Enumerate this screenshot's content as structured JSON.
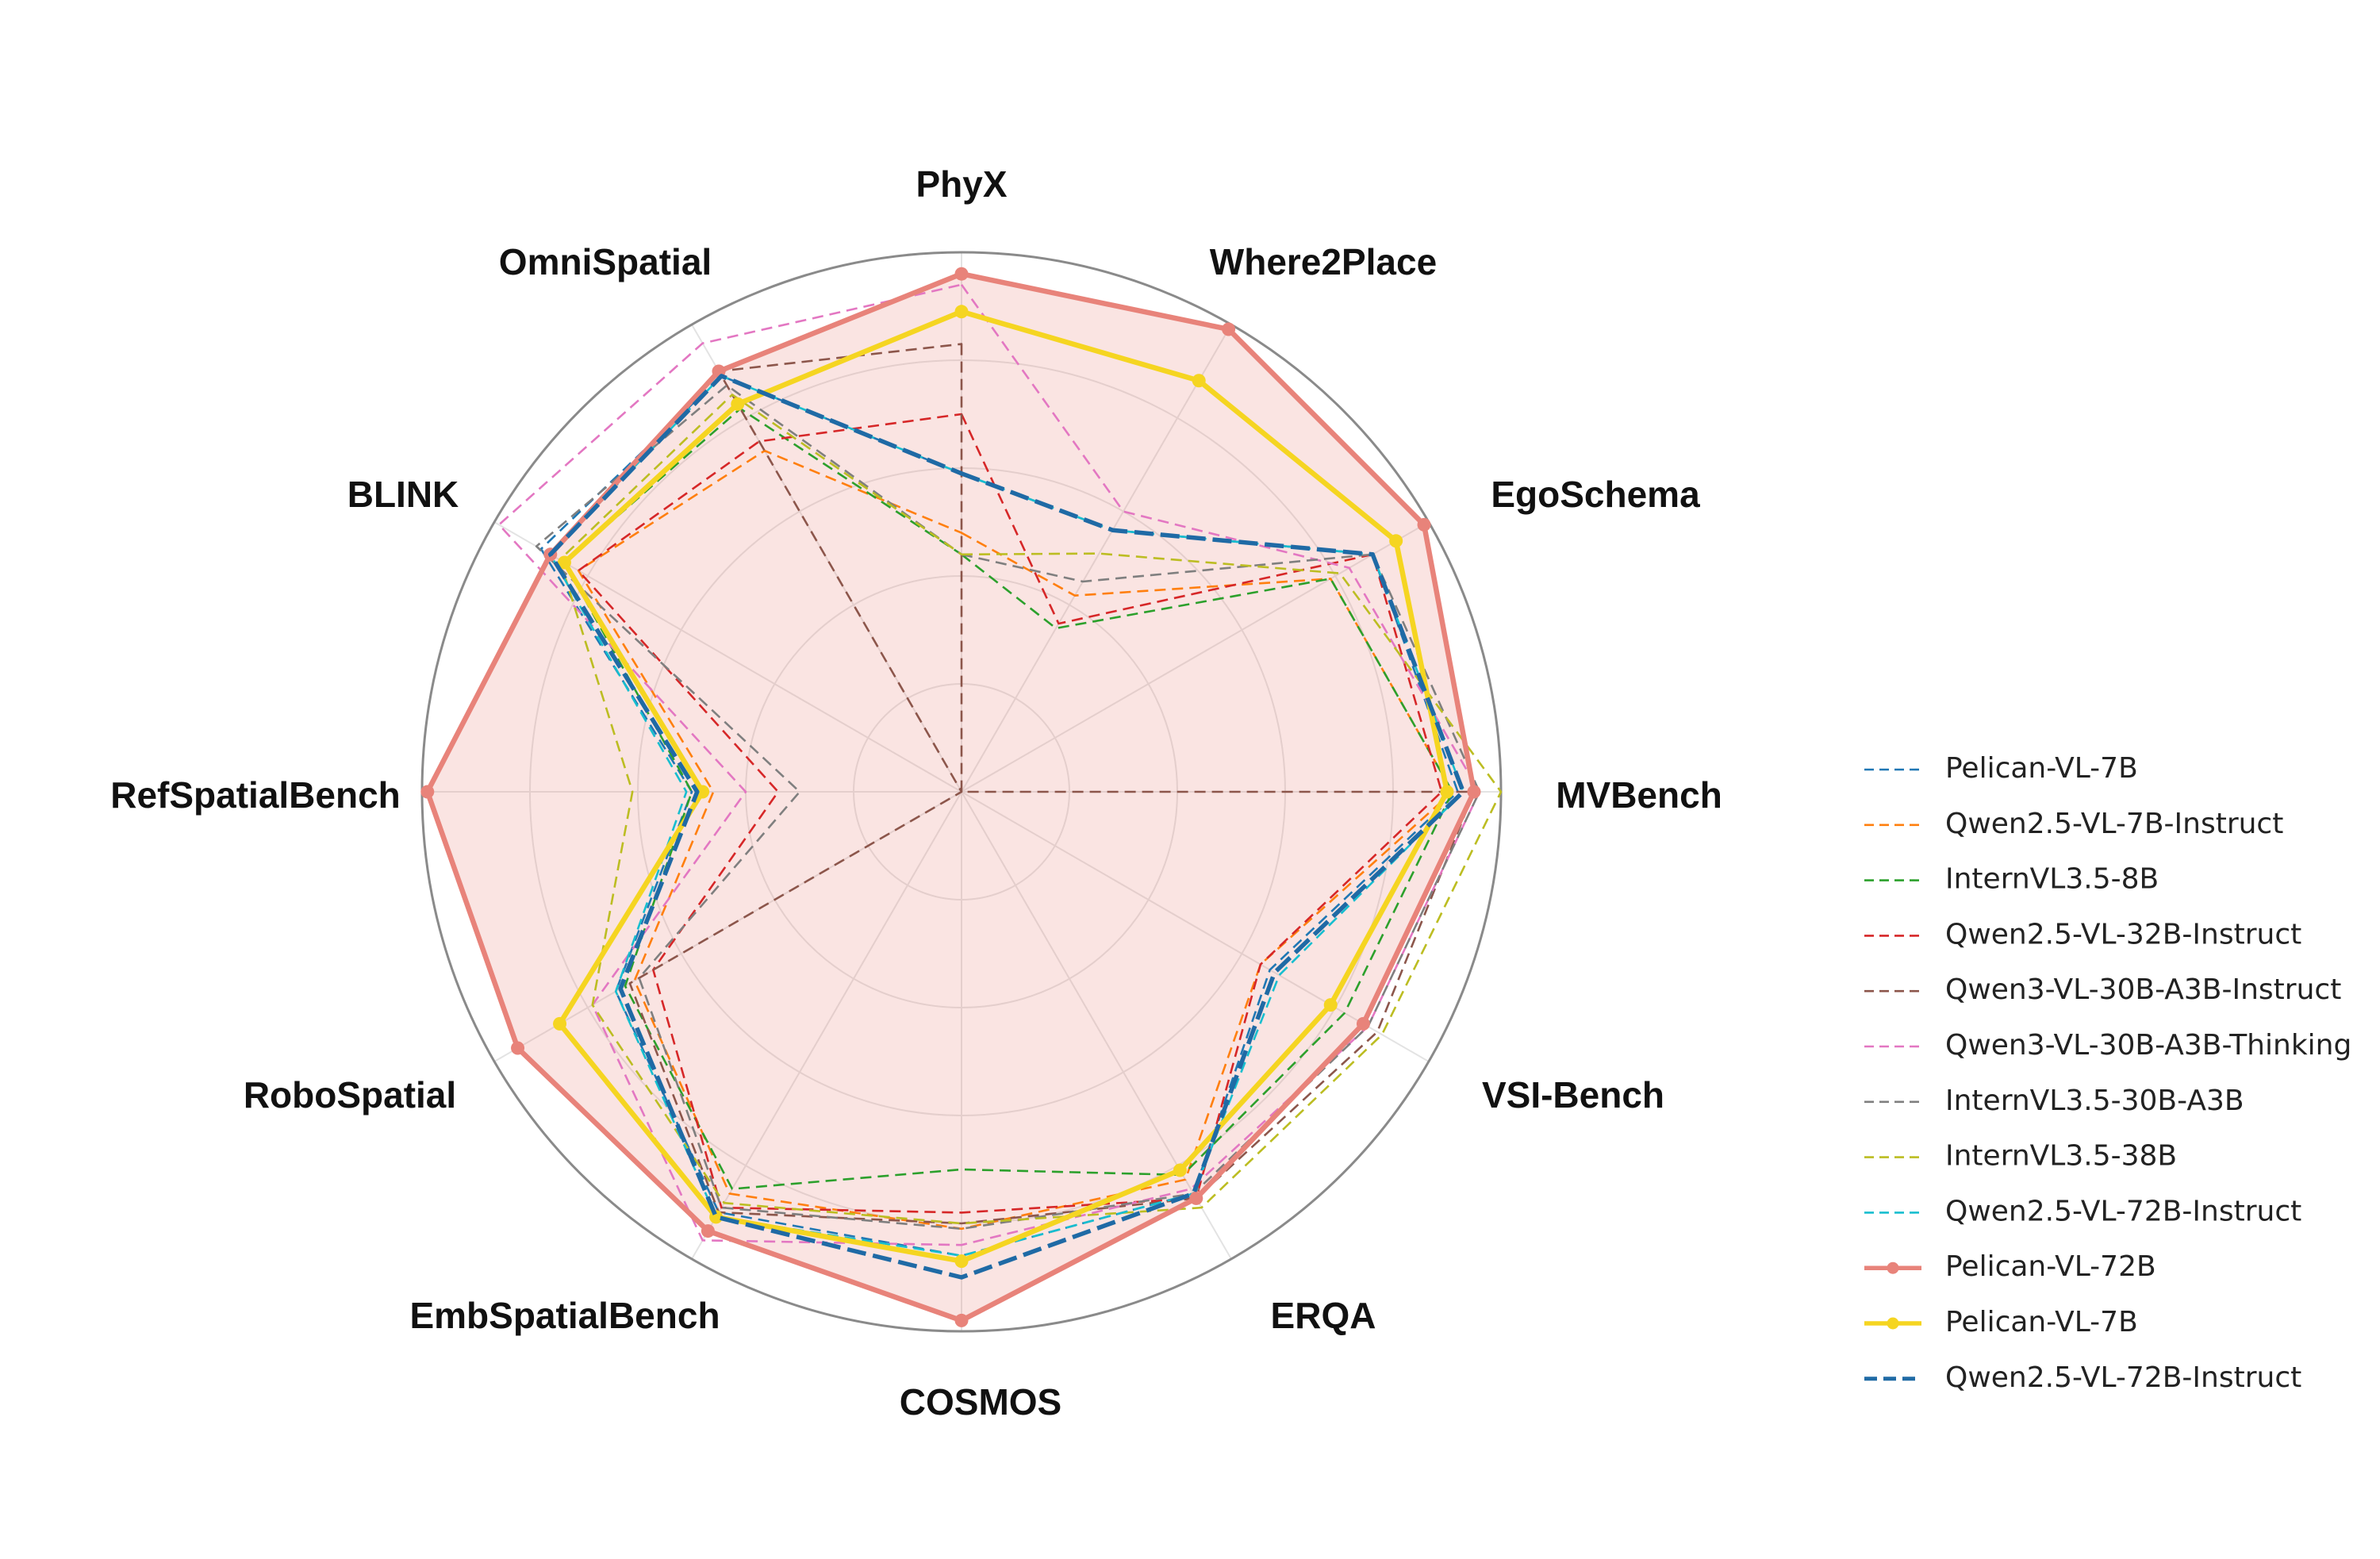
{
  "chart_data": {
    "type": "radar",
    "title": "",
    "axes": [
      "PhyX",
      "Where2Place",
      "EgoSchema",
      "MVBench",
      "VSI-Bench",
      "ERQA",
      "COSMOS",
      "EmbSpatialBench",
      "RoboSpatial",
      "RefSpatialBench",
      "BLINK",
      "OmniSpatial"
    ],
    "rlim": [
      0,
      1
    ],
    "grid": true,
    "legend_position": "right",
    "series": [
      {
        "name": "Pelican-VL-7B",
        "color": "#1f77b4",
        "style": "dashed-thin",
        "values": [
          0.59,
          0.56,
          0.88,
          0.92,
          0.66,
          0.86,
          0.86,
          0.9,
          0.74,
          0.5,
          0.9,
          0.89
        ]
      },
      {
        "name": "Qwen2.5-VL-7B-Instruct",
        "color": "#ff7f0e",
        "style": "dashed-thin",
        "values": [
          0.48,
          0.42,
          0.79,
          0.91,
          0.64,
          0.83,
          0.81,
          0.86,
          0.7,
          0.46,
          0.82,
          0.73
        ]
      },
      {
        "name": "InternVL3.5-8B",
        "color": "#2ca02c",
        "style": "dashed-thin",
        "values": [
          0.44,
          0.35,
          0.79,
          0.91,
          0.82,
          0.82,
          0.7,
          0.85,
          0.72,
          0.5,
          0.85,
          0.82
        ]
      },
      {
        "name": "Qwen2.5-VL-32B-Instruct",
        "color": "#d62728",
        "style": "dashed-thin",
        "values": [
          0.7,
          0.36,
          0.88,
          0.89,
          0.64,
          0.87,
          0.78,
          0.89,
          0.66,
          0.34,
          0.82,
          0.75
        ]
      },
      {
        "name": "Qwen3-VL-30B-A3B-Instruct",
        "color": "#8c564b",
        "style": "dashed-thin",
        "values": [
          0.83,
          0.0,
          0.0,
          0.95,
          0.89,
          0.87,
          0.8,
          0.9,
          0.71,
          0.0,
          0.0,
          0.9
        ]
      },
      {
        "name": "Qwen3-VL-30B-A3B-Thinking",
        "color": "#e377c2",
        "style": "dashed-thin",
        "values": [
          0.94,
          0.6,
          0.83,
          0.96,
          0.87,
          0.85,
          0.84,
          0.96,
          0.79,
          0.4,
          0.99,
          0.96
        ]
      },
      {
        "name": "InternVL3.5-30B-A3B",
        "color": "#7f7f7f",
        "style": "dashed-thin",
        "values": [
          0.44,
          0.45,
          0.88,
          0.96,
          0.87,
          0.86,
          0.81,
          0.89,
          0.69,
          0.3,
          0.91,
          0.87
        ]
      },
      {
        "name": "InternVL3.5-38B",
        "color": "#bcbd22",
        "style": "dashed-thin",
        "values": [
          0.44,
          0.51,
          0.81,
          1.0,
          0.9,
          0.89,
          0.8,
          0.88,
          0.79,
          0.61,
          0.86,
          0.85
        ]
      },
      {
        "name": "Qwen2.5-VL-72B-Instruct",
        "color": "#17becf",
        "style": "dashed-thin",
        "values": [
          0.59,
          0.56,
          0.88,
          0.93,
          0.68,
          0.86,
          0.86,
          0.91,
          0.74,
          0.51,
          0.88,
          0.89
        ]
      },
      {
        "name": "Pelican-VL-72B",
        "color": "#e8837a",
        "style": "solid-marker-fill",
        "values": [
          0.96,
          0.99,
          0.99,
          0.95,
          0.86,
          0.87,
          0.98,
          0.94,
          0.95,
          0.99,
          0.88,
          0.9
        ]
      },
      {
        "name": "Pelican-VL-7B",
        "color": "#f5d521",
        "style": "solid-marker",
        "values": [
          0.89,
          0.88,
          0.93,
          0.9,
          0.79,
          0.81,
          0.87,
          0.91,
          0.86,
          0.48,
          0.85,
          0.83
        ]
      },
      {
        "name": "Qwen2.5-VL-72B-Instruct",
        "color": "#1f6aa5",
        "style": "dashed-thick",
        "values": [
          0.59,
          0.56,
          0.88,
          0.93,
          0.67,
          0.86,
          0.9,
          0.91,
          0.73,
          0.49,
          0.88,
          0.89
        ]
      }
    ]
  }
}
